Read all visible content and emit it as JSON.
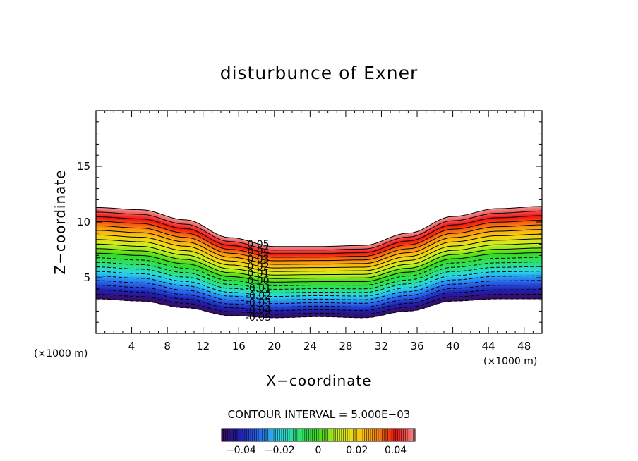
{
  "chart_data": {
    "type": "contour",
    "title": "disturbunce of Exner",
    "xlabel": "X−coordinate",
    "ylabel": "Z−coordinate",
    "x_unit": "(×1000 m)",
    "y_unit": "(×1000 m)",
    "xlim": [
      0,
      50
    ],
    "ylim": [
      0,
      20
    ],
    "x_ticks": [
      4,
      8,
      12,
      16,
      20,
      24,
      28,
      32,
      36,
      40,
      44,
      48
    ],
    "y_ticks": [
      5,
      10,
      15
    ],
    "contour_interval_text": "CONTOUR INTERVAL = 5.000E−03",
    "contour_levels": [
      -0.05,
      -0.045,
      -0.04,
      -0.035,
      -0.03,
      -0.025,
      -0.02,
      -0.015,
      -0.01,
      -0.005,
      0,
      0.005,
      0.01,
      0.015,
      0.02,
      0.025,
      0.03,
      0.035,
      0.04,
      0.045,
      0.05
    ],
    "level_labels": [
      "0.05",
      "0.04",
      "0.03",
      "0.02",
      "0.01",
      "0.00",
      "-0.01",
      "-0.02",
      "-0.03",
      "-0.04",
      "-0.05"
    ],
    "field_top_z": [
      11.3,
      11.1,
      10.2,
      8.6,
      7.8,
      7.8,
      7.9,
      9.0,
      10.5,
      11.2,
      11.4
    ],
    "field_bottom_z": [
      3.1,
      2.9,
      2.3,
      1.6,
      1.4,
      1.5,
      1.4,
      2.0,
      2.9,
      3.1,
      3.1
    ],
    "profile_x": [
      0,
      5,
      10,
      15,
      20,
      25,
      30,
      35,
      40,
      45,
      50
    ],
    "colorbar": {
      "range": [
        -0.05,
        0.05
      ],
      "tick_values": [
        -0.04,
        -0.02,
        0,
        0.02,
        0.04
      ],
      "tick_labels": [
        "−0.04",
        "−0.02",
        "0",
        "0.02",
        "0.04"
      ]
    },
    "colormap": [
      "#3a0a5a",
      "#1f20b0",
      "#2a6ef0",
      "#28d8e8",
      "#2ee070",
      "#3ad81e",
      "#c8f020",
      "#f8d010",
      "#f88a10",
      "#f01010",
      "#f09090"
    ]
  }
}
